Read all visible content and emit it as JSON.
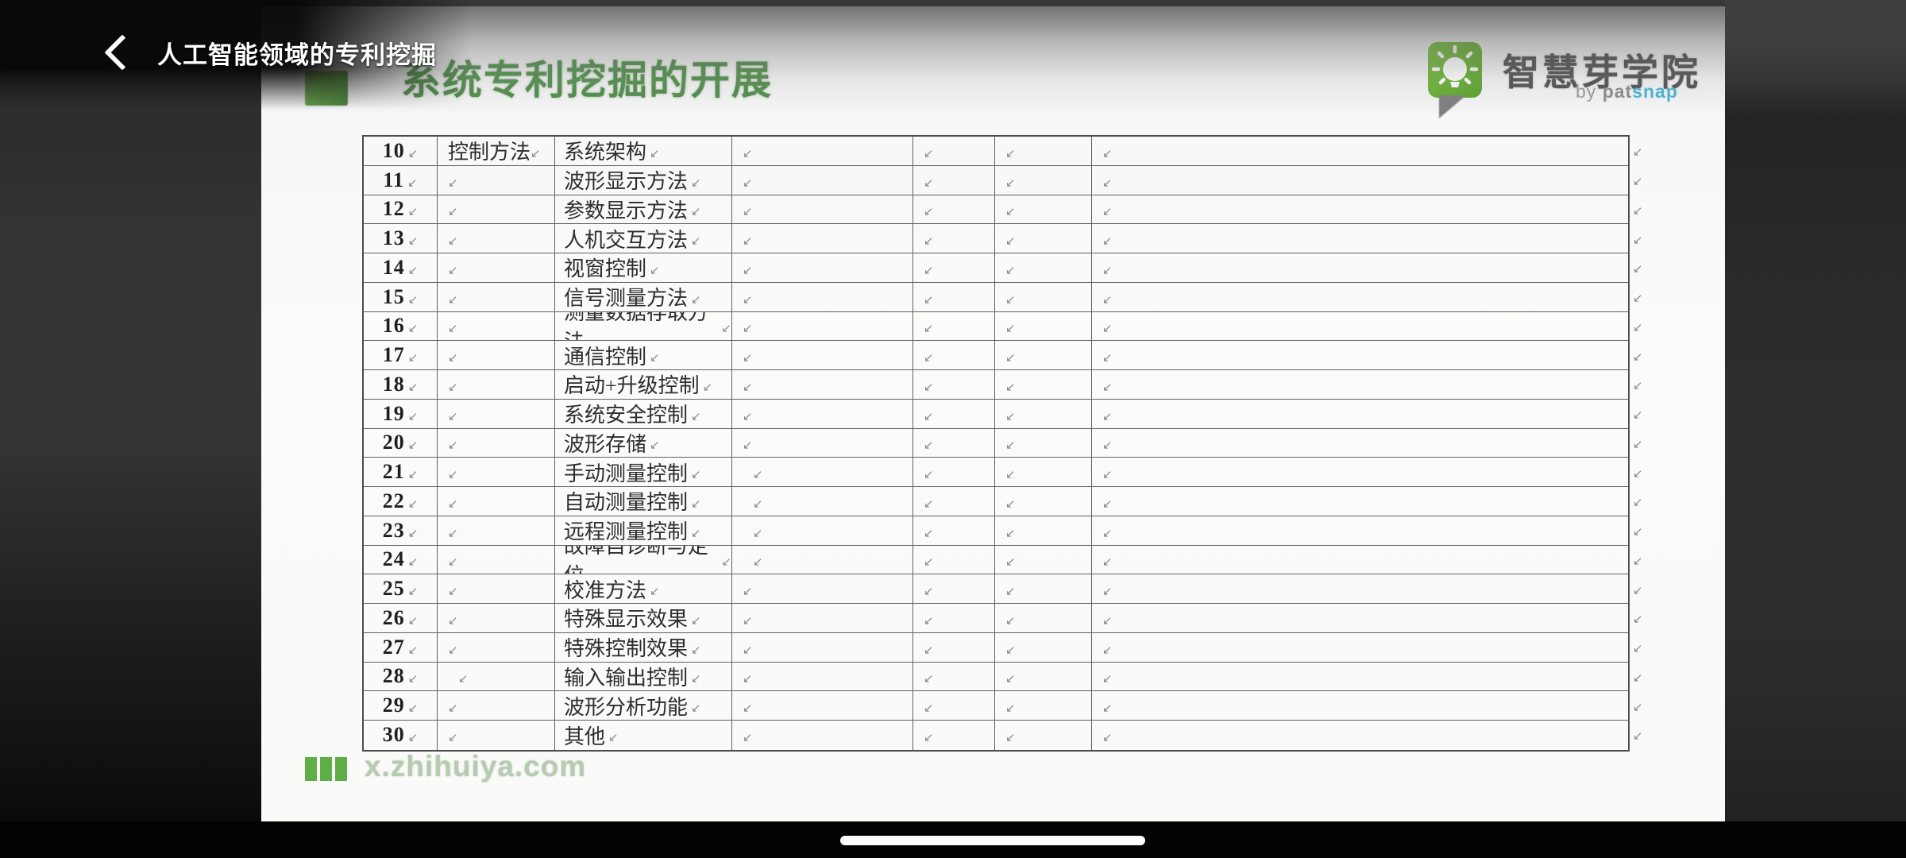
{
  "player": {
    "title": "人工智能领域的专利挖掘",
    "back_icon": "chevron-left"
  },
  "slide": {
    "heading": "系统专利挖掘的开展",
    "logo": {
      "name": "智慧芽学院",
      "byline_prefix": "by ",
      "byline_gray": "pat",
      "byline_blue": "snap",
      "icon": "lightbulb-speech-bubble"
    },
    "footer": {
      "website": "x.zhihuiya.com"
    },
    "table": {
      "cell_mark": "↙",
      "columns": [
        "row-number",
        "category",
        "subcategory",
        "note1",
        "note2",
        "note3",
        "note4"
      ],
      "rows": [
        {
          "num": "10",
          "group": "控制方法",
          "label": "系统架构"
        },
        {
          "num": "11",
          "label": "波形显示方法"
        },
        {
          "num": "12",
          "label": "参数显示方法"
        },
        {
          "num": "13",
          "label": "人机交互方法"
        },
        {
          "num": "14",
          "label": "视窗控制"
        },
        {
          "num": "15",
          "label": "信号测量方法"
        },
        {
          "num": "16",
          "label": "测量数据存取方法"
        },
        {
          "num": "17",
          "label": "通信控制"
        },
        {
          "num": "18",
          "label": "启动+升级控制"
        },
        {
          "num": "19",
          "label": "系统安全控制"
        },
        {
          "num": "20",
          "label": "波形存储"
        },
        {
          "num": "21",
          "label": "手动测量控制",
          "indent_col4": true
        },
        {
          "num": "22",
          "label": "自动测量控制",
          "indent_col4": true
        },
        {
          "num": "23",
          "label": "远程测量控制",
          "indent_col4": true
        },
        {
          "num": "24",
          "label": "故障自诊断与定位",
          "indent_col4": true
        },
        {
          "num": "25",
          "label": "校准方法"
        },
        {
          "num": "26",
          "label": "特殊显示效果"
        },
        {
          "num": "27",
          "label": "特殊控制效果"
        },
        {
          "num": "28",
          "label": "输入输出控制",
          "indent_col2": true
        },
        {
          "num": "29",
          "label": "波形分析功能"
        },
        {
          "num": "30",
          "label": "其他"
        }
      ]
    }
  },
  "colors": {
    "heading_green": "#4f8c49",
    "logo_green": "#68b232",
    "patsnap_blue": "#46b5d7",
    "footer_text_green": "#b7cbb0",
    "footer_bar_green": "#5fae47",
    "table_border": "#616161",
    "background_black": "#020202"
  }
}
